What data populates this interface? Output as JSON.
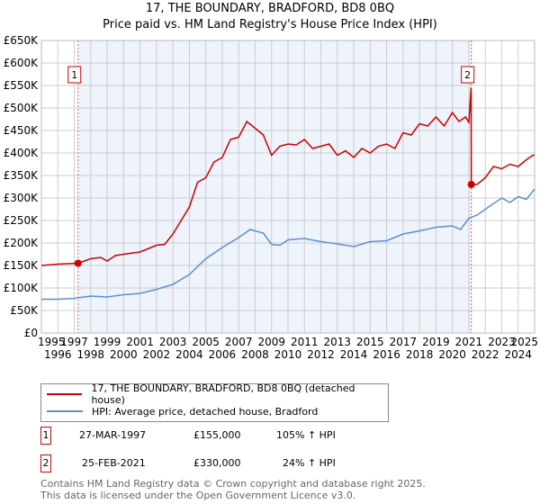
{
  "chart_data": {
    "type": "line",
    "title": "17, THE BOUNDARY, BRADFORD, BD8 0BQ",
    "subtitle": "Price paid vs. HM Land Registry's House Price Index (HPI)",
    "xlim": [
      1995,
      2025
    ],
    "ylim": [
      0,
      650000
    ],
    "xticks": [
      "1995",
      "1996",
      "1997",
      "1998",
      "1999",
      "2000",
      "2001",
      "2002",
      "2003",
      "2004",
      "2005",
      "2006",
      "2007",
      "2008",
      "2009",
      "2010",
      "2011",
      "2012",
      "2013",
      "2014",
      "2015",
      "2016",
      "2017",
      "2018",
      "2019",
      "2020",
      "2021",
      "2022",
      "2023",
      "2024",
      "2025"
    ],
    "yticks": [
      "£0",
      "£50K",
      "£100K",
      "£150K",
      "£200K",
      "£250K",
      "£300K",
      "£350K",
      "£400K",
      "£450K",
      "£500K",
      "£550K",
      "£600K",
      "£650K"
    ],
    "grid": true,
    "series": [
      {
        "name": "17, THE BOUNDARY, BRADFORD, BD8 0BQ (detached house)",
        "color": "#cc0000",
        "x": [
          1995,
          1996,
          1997.23,
          1998,
          1998.6,
          1999,
          1999.5,
          2000,
          2001,
          2002,
          2002.5,
          2003,
          2003.5,
          2004,
          2004.5,
          2005,
          2005.5,
          2006,
          2006.5,
          2007,
          2007.5,
          2008,
          2008.5,
          2009,
          2009.5,
          2010,
          2010.5,
          2011,
          2011.5,
          2012,
          2012.5,
          2013,
          2013.5,
          2014,
          2014.5,
          2015,
          2015.5,
          2016,
          2016.5,
          2017,
          2017.5,
          2018,
          2018.5,
          2019,
          2019.5,
          2020,
          2020.4,
          2020.8,
          2021.0,
          2021.1,
          2021.14,
          2021.15,
          2021.5,
          2022,
          2022.5,
          2023,
          2023.5,
          2024,
          2024.5,
          2024.9,
          2025
        ],
        "values": [
          150000,
          153000,
          155000,
          165000,
          168000,
          160000,
          172000,
          175000,
          180000,
          195000,
          197000,
          220000,
          250000,
          280000,
          335000,
          345000,
          380000,
          390000,
          430000,
          435000,
          470000,
          455000,
          440000,
          395000,
          415000,
          420000,
          418000,
          430000,
          410000,
          415000,
          420000,
          395000,
          405000,
          390000,
          410000,
          400000,
          415000,
          420000,
          410000,
          445000,
          440000,
          465000,
          460000,
          480000,
          460000,
          490000,
          470000,
          480000,
          468000,
          525000,
          545000,
          330000,
          330000,
          345000,
          370000,
          365000,
          375000,
          370000,
          385000,
          395000,
          395000
        ]
      },
      {
        "name": "HPI: Average price, detached house, Bradford",
        "color": "#5b8fd4",
        "x": [
          1995,
          1996,
          1997,
          1998,
          1999,
          2000,
          2001,
          2002,
          2003,
          2004,
          2005,
          2006,
          2007,
          2007.7,
          2008.5,
          2009,
          2009.5,
          2010,
          2011,
          2012,
          2013,
          2014,
          2015,
          2016,
          2017,
          2018,
          2019,
          2020,
          2020.5,
          2021,
          2021.5,
          2022,
          2023,
          2023.5,
          2024,
          2024.5,
          2025
        ],
        "values": [
          75000,
          75000,
          77000,
          82000,
          80000,
          85000,
          88000,
          97000,
          108000,
          130000,
          165000,
          190000,
          212000,
          230000,
          222000,
          197000,
          195000,
          207000,
          210000,
          203000,
          198000,
          192000,
          203000,
          205000,
          220000,
          227000,
          235000,
          238000,
          230000,
          255000,
          262000,
          275000,
          300000,
          290000,
          303000,
          297000,
          320000
        ]
      }
    ],
    "sales": [
      {
        "label": "1",
        "x": 1997.23,
        "value": 155000
      },
      {
        "label": "2",
        "x": 2021.15,
        "value": 330000
      }
    ],
    "legend": "below"
  },
  "table": [
    {
      "num": "1",
      "date": "27-MAR-1997",
      "price": "£155,000",
      "hpi": "105% ↑ HPI"
    },
    {
      "num": "2",
      "date": "25-FEB-2021",
      "price": "£330,000",
      "hpi": "24% ↑ HPI"
    }
  ],
  "footer": [
    "Contains HM Land Registry data © Crown copyright and database right 2025.",
    "This data is licensed under the Open Government Licence v3.0."
  ]
}
